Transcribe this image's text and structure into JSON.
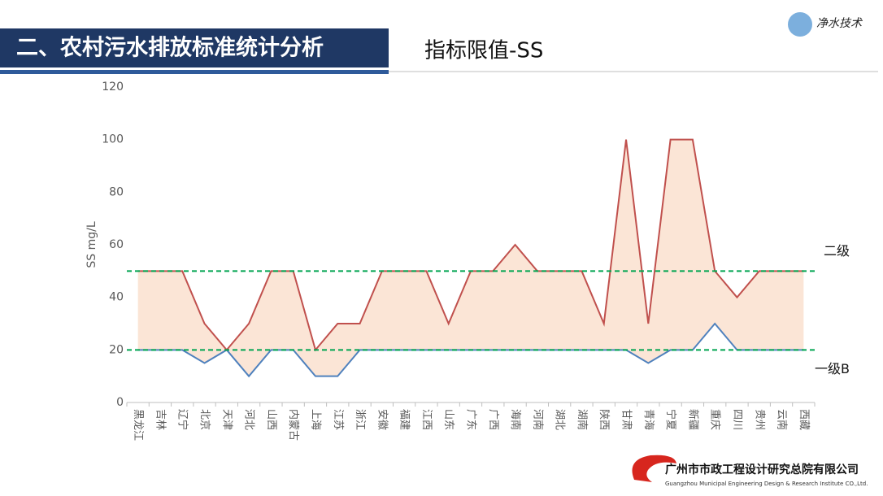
{
  "header": {
    "title": "二、农村污水排放标准统计分析",
    "subtitle": "指标限值-SS",
    "logo_text": "净水技术"
  },
  "footer": {
    "company": "广州市市政工程设计研究总院有限公司",
    "company_en": "Guangzhou Municipal Engineering Design & Research Institute CO.,Ltd."
  },
  "chart_data": {
    "type": "line",
    "y_label": "SS mg/L",
    "categories": [
      "黑龙江",
      "吉林",
      "辽宁",
      "北京",
      "天津",
      "河北",
      "山西",
      "内蒙古",
      "上海",
      "江苏",
      "浙江",
      "安徽",
      "福建",
      "江西",
      "山东",
      "广东",
      "广西",
      "海南",
      "河南",
      "湖北",
      "湖南",
      "陕西",
      "甘肃",
      "青海",
      "宁夏",
      "新疆",
      "重庆",
      "四川",
      "贵州",
      "云南",
      "西藏"
    ],
    "series": [
      {
        "color": "#c0504d",
        "values": [
          50,
          50,
          50,
          30,
          20,
          30,
          50,
          50,
          20,
          30,
          30,
          50,
          50,
          50,
          30,
          50,
          50,
          60,
          50,
          50,
          50,
          30,
          100,
          30,
          100,
          100,
          50,
          40,
          50,
          50,
          50
        ]
      },
      {
        "color": "#4f81bd",
        "values": [
          20,
          20,
          20,
          15,
          20,
          10,
          20,
          20,
          10,
          10,
          20,
          20,
          20,
          20,
          20,
          20,
          20,
          20,
          20,
          20,
          20,
          20,
          20,
          15,
          20,
          20,
          30,
          20,
          20,
          20,
          20
        ]
      }
    ],
    "band_fill": "#fbe5d6",
    "reference_lines": [
      {
        "value": 50,
        "label": "二级",
        "color": "#00a550",
        "dashed": true
      },
      {
        "value": 20,
        "label": "一级B",
        "color": "#00a550",
        "dashed": true
      }
    ],
    "ylim": [
      0,
      120
    ],
    "yticks": [
      0,
      20,
      40,
      60,
      80,
      100,
      120
    ]
  }
}
